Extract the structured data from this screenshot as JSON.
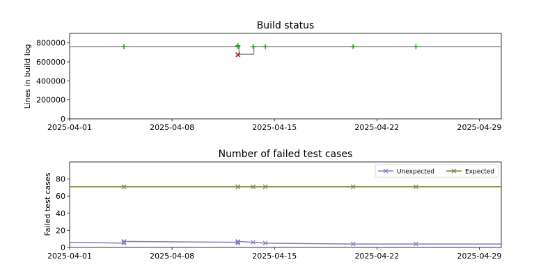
{
  "colors": {
    "step_line": "#8c8c8c",
    "pass_marker": "#2ca02c",
    "fail_marker": "#b22222",
    "unexpected": "#7f7fbf",
    "expected": "#7f7f3f",
    "axes": "#000000"
  },
  "chart_data": [
    {
      "type": "line",
      "title": "Build status",
      "xlabel": "",
      "ylabel": "Lines in build log",
      "x_axis": {
        "type": "date",
        "range": [
          "2025-04-01",
          "2025-04-30T12:00"
        ],
        "tick_labels": [
          "2025-04-01",
          "2025-04-08",
          "2025-04-15",
          "2025-04-22",
          "2025-04-29"
        ],
        "tick_values": [
          "2025-04-01",
          "2025-04-08",
          "2025-04-15",
          "2025-04-22",
          "2025-04-29"
        ]
      },
      "y_axis": {
        "range": [
          0,
          900000
        ],
        "tick_labels": [
          "0",
          "200000",
          "400000",
          "600000",
          "800000"
        ],
        "tick_values": [
          0,
          200000,
          400000,
          600000,
          800000
        ]
      },
      "grid": false,
      "series": [
        {
          "style": "step-line",
          "points": [
            {
              "x": "2025-04-01",
              "y": 760000
            },
            {
              "x": "2025-04-12T14:00",
              "y": 760000
            },
            {
              "x": "2025-04-12T14:00",
              "y": 680000
            },
            {
              "x": "2025-04-13T14:00",
              "y": 680000
            },
            {
              "x": "2025-04-13T14:00",
              "y": 760000
            },
            {
              "x": "2025-04-30T12:00",
              "y": 760000
            }
          ]
        },
        {
          "style": "pass-marker",
          "points": [
            {
              "x": "2025-04-04T17:00",
              "y": 760000
            },
            {
              "x": "2025-04-12T12:00",
              "y": 760000
            },
            {
              "x": "2025-04-12T12:00",
              "y": 770000
            },
            {
              "x": "2025-04-13T13:00",
              "y": 760000
            },
            {
              "x": "2025-04-14T09:00",
              "y": 760000
            },
            {
              "x": "2025-04-20T09:00",
              "y": 760000
            },
            {
              "x": "2025-04-24T16:00",
              "y": 760000
            }
          ]
        },
        {
          "style": "fail-marker",
          "points": [
            {
              "x": "2025-04-12T12:00",
              "y": 675000
            }
          ]
        }
      ]
    },
    {
      "type": "line",
      "title": "Number of failed test cases",
      "xlabel": "",
      "ylabel": "Failed test cases",
      "x_axis": {
        "type": "date",
        "range": [
          "2025-04-01",
          "2025-04-30T12:00"
        ],
        "tick_labels": [
          "2025-04-01",
          "2025-04-08",
          "2025-04-15",
          "2025-04-22",
          "2025-04-29"
        ],
        "tick_values": [
          "2025-04-01",
          "2025-04-08",
          "2025-04-15",
          "2025-04-22",
          "2025-04-29"
        ]
      },
      "y_axis": {
        "range": [
          0,
          100
        ],
        "tick_labels": [
          "0",
          "20",
          "40",
          "60",
          "80"
        ],
        "tick_values": [
          0,
          20,
          40,
          60,
          80
        ]
      },
      "grid": false,
      "legend": {
        "placement": "top-right",
        "columns": 2
      },
      "series": [
        {
          "name": "Unexpected",
          "color_key": "unexpected",
          "marker": "x",
          "points": [
            {
              "x": "2025-04-01",
              "y": 6
            },
            {
              "x": "2025-04-04T17:00",
              "y": 5
            },
            {
              "x": "2025-04-04T17:00",
              "y": 6
            },
            {
              "x": "2025-04-04T17:00",
              "y": 7
            },
            {
              "x": "2025-04-12T12:00",
              "y": 6
            },
            {
              "x": "2025-04-12T12:00",
              "y": 5
            },
            {
              "x": "2025-04-12T12:00",
              "y": 7
            },
            {
              "x": "2025-04-13T13:00",
              "y": 6
            },
            {
              "x": "2025-04-14T09:00",
              "y": 5
            },
            {
              "x": "2025-04-20T09:00",
              "y": 4
            },
            {
              "x": "2025-04-24T16:00",
              "y": 4
            },
            {
              "x": "2025-04-30T12:00",
              "y": 4
            }
          ]
        },
        {
          "name": "Expected",
          "color_key": "expected",
          "marker": "x",
          "points": [
            {
              "x": "2025-04-01",
              "y": 71
            },
            {
              "x": "2025-04-04T17:00",
              "y": 71
            },
            {
              "x": "2025-04-12T12:00",
              "y": 71
            },
            {
              "x": "2025-04-12T12:00",
              "y": 71
            },
            {
              "x": "2025-04-13T13:00",
              "y": 71
            },
            {
              "x": "2025-04-14T09:00",
              "y": 71
            },
            {
              "x": "2025-04-20T09:00",
              "y": 71
            },
            {
              "x": "2025-04-24T16:00",
              "y": 71
            },
            {
              "x": "2025-04-30T12:00",
              "y": 71
            }
          ]
        }
      ]
    }
  ]
}
